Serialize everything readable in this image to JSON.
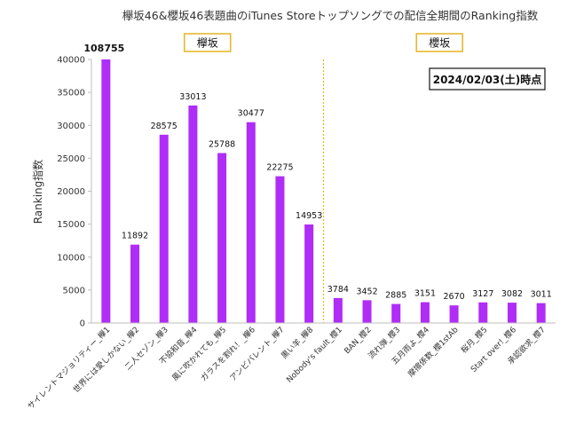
{
  "chart_data": {
    "type": "bar",
    "title": "欅坂46&櫻坂46表題曲のiTunes Storeトップソングでの配信全期間のRanking指数",
    "ylabel": "Ranking指数",
    "xlabel": "",
    "ylim": [
      0,
      40000
    ],
    "yticks": [
      0,
      5000,
      10000,
      15000,
      20000,
      25000,
      30000,
      35000,
      40000
    ],
    "grid": false,
    "bar_color": "#b02cf7",
    "divider_color": "#e3b327",
    "group_box_color": "#e8b830",
    "categories": [
      "サイレントマジョリティー_欅1",
      "世界には愛しかない_欅2",
      "二人セゾン_欅3",
      "不協和音_欅4",
      "風に吹かれても_欅5",
      "ガラスを割れ！_欅6",
      "アンビバレント_欅7",
      "黒い羊_欅8",
      "Nobody's fault_櫻1",
      "BAN_櫻2",
      "流れ弾_櫻3",
      "五月雨よ_櫻4",
      "摩擦係数_櫻1stAb",
      "桜月_櫻5",
      "Start over!_櫻6",
      "承認欲求_櫻7"
    ],
    "values": [
      108755,
      11892,
      28575,
      33013,
      25788,
      30477,
      22275,
      14953,
      3784,
      3452,
      2885,
      3151,
      2670,
      3127,
      3082,
      3011
    ],
    "value_labels": [
      "108755",
      "11892",
      "28575",
      "33013",
      "25788",
      "30477",
      "22275",
      "14953",
      "3784",
      "3452",
      "2885",
      "3151",
      "2670",
      "3127",
      "3082",
      "3011"
    ],
    "groups": [
      {
        "label": "欅坂",
        "from": 0,
        "to": 7
      },
      {
        "label": "櫻坂",
        "from": 8,
        "to": 15
      }
    ],
    "annotation": "2024/02/03(土)時点"
  }
}
